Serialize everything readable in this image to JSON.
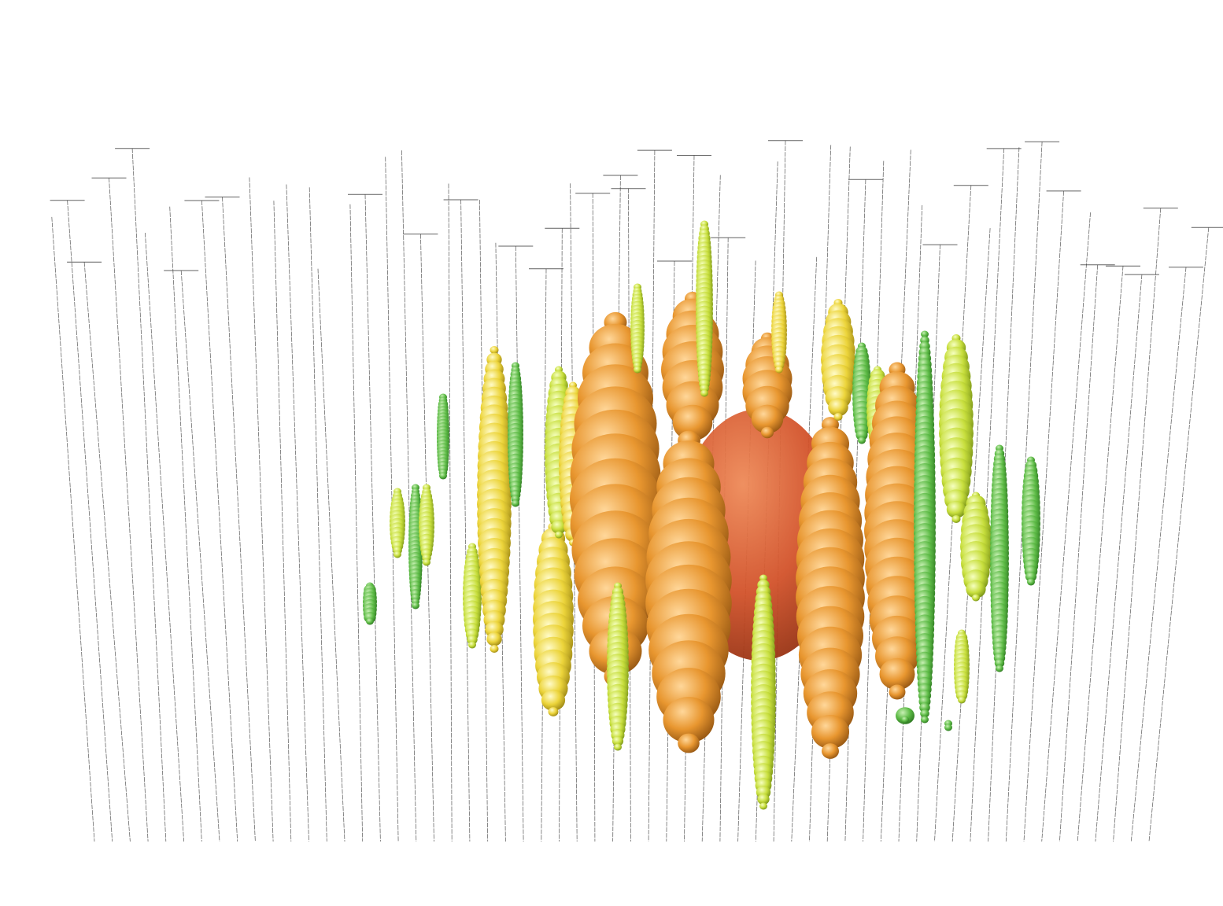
{
  "figure": {
    "subject": "event-display",
    "background_color": "#ffffff",
    "string_color": "#3a3a3a",
    "hit_colors": {
      "red": "#d9542b",
      "orange": "#e8962f",
      "yellow": "#ecd43a",
      "yellowgreen": "#c7de3c",
      "green": "#5dbb46"
    },
    "string_count": 60,
    "hit_string_count": 28
  }
}
